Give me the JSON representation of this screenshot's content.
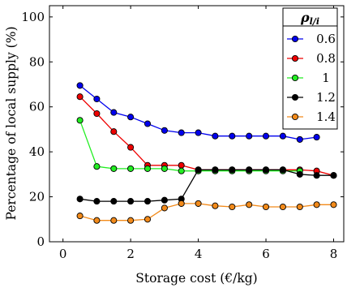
{
  "chart_data": {
    "type": "line",
    "title": "",
    "xlabel": "Storage cost (€/kg)",
    "ylabel": "Percentage of local supply (%)",
    "xlim": [
      -0.4,
      8.3
    ],
    "ylim": [
      0,
      105
    ],
    "xticks": [
      0,
      2,
      4,
      6,
      8
    ],
    "yticks": [
      0,
      20,
      40,
      60,
      80,
      100
    ],
    "grid": false,
    "legend": {
      "title_main": "ρ",
      "title_sub": "l/i",
      "placement": "top-right"
    },
    "x": [
      0.5,
      1.0,
      1.5,
      2.0,
      2.5,
      3.0,
      3.5,
      4.0,
      4.5,
      5.0,
      5.5,
      6.0,
      6.5,
      7.0,
      7.5,
      8.0
    ],
    "series": [
      {
        "name": "0.6",
        "color": "#0000ee",
        "values": [
          69.5,
          63.5,
          57.5,
          55.5,
          52.5,
          49.5,
          48.5,
          48.5,
          47.0,
          47.0,
          47.0,
          47.0,
          47.0,
          45.5,
          46.5,
          null
        ]
      },
      {
        "name": "0.8",
        "color": "#ee0000",
        "values": [
          64.5,
          57.0,
          49.0,
          42.0,
          34.0,
          34.0,
          34.0,
          32.0,
          32.0,
          32.0,
          32.0,
          32.0,
          32.0,
          32.0,
          31.5,
          29.5
        ]
      },
      {
        "name": "1",
        "color": "#22ee22",
        "values": [
          54.0,
          33.5,
          32.5,
          32.5,
          32.5,
          32.5,
          31.5,
          31.5,
          31.5,
          31.5,
          31.5,
          31.5,
          31.5,
          31.5,
          null,
          null
        ]
      },
      {
        "name": "1.2",
        "color": "#000000",
        "values": [
          19.0,
          18.0,
          18.0,
          18.0,
          18.0,
          18.5,
          19.0,
          32.0,
          32.0,
          32.0,
          32.0,
          32.0,
          32.0,
          30.0,
          29.5,
          29.5
        ]
      },
      {
        "name": "1.4",
        "color": "#f28a1a",
        "values": [
          11.5,
          9.5,
          9.5,
          9.5,
          10.0,
          15.0,
          17.0,
          17.0,
          16.0,
          15.5,
          16.5,
          15.5,
          15.5,
          15.5,
          16.5,
          16.5
        ]
      }
    ]
  }
}
